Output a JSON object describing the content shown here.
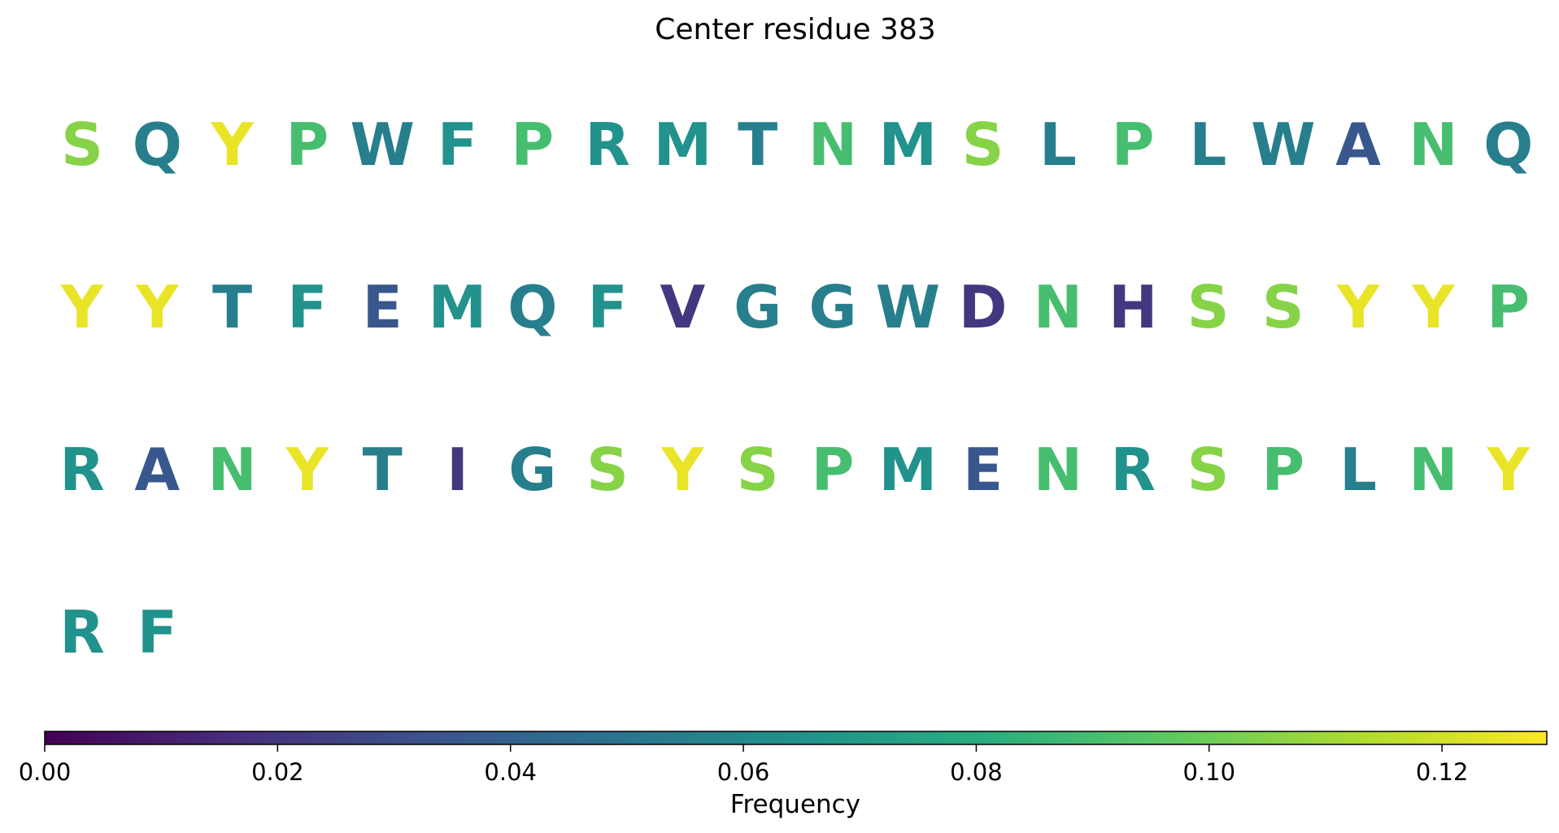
{
  "chart_data": {
    "type": "table",
    "title": "Center residue 383",
    "residues": [
      {
        "letter": "S",
        "value": 0.105
      },
      {
        "letter": "Q",
        "value": 0.055
      },
      {
        "letter": "Y",
        "value": 0.125
      },
      {
        "letter": "P",
        "value": 0.09
      },
      {
        "letter": "W",
        "value": 0.055
      },
      {
        "letter": "F",
        "value": 0.065
      },
      {
        "letter": "P",
        "value": 0.09
      },
      {
        "letter": "R",
        "value": 0.065
      },
      {
        "letter": "M",
        "value": 0.065
      },
      {
        "letter": "T",
        "value": 0.055
      },
      {
        "letter": "N",
        "value": 0.09
      },
      {
        "letter": "M",
        "value": 0.065
      },
      {
        "letter": "S",
        "value": 0.105
      },
      {
        "letter": "L",
        "value": 0.055
      },
      {
        "letter": "P",
        "value": 0.09
      },
      {
        "letter": "L",
        "value": 0.055
      },
      {
        "letter": "W",
        "value": 0.055
      },
      {
        "letter": "A",
        "value": 0.035
      },
      {
        "letter": "N",
        "value": 0.09
      },
      {
        "letter": "Q",
        "value": 0.055
      },
      {
        "letter": "Y",
        "value": 0.125
      },
      {
        "letter": "Y",
        "value": 0.125
      },
      {
        "letter": "T",
        "value": 0.055
      },
      {
        "letter": "F",
        "value": 0.065
      },
      {
        "letter": "E",
        "value": 0.035
      },
      {
        "letter": "M",
        "value": 0.065
      },
      {
        "letter": "Q",
        "value": 0.055
      },
      {
        "letter": "F",
        "value": 0.065
      },
      {
        "letter": "V",
        "value": 0.02
      },
      {
        "letter": "G",
        "value": 0.055
      },
      {
        "letter": "G",
        "value": 0.055
      },
      {
        "letter": "W",
        "value": 0.055
      },
      {
        "letter": "D",
        "value": 0.02
      },
      {
        "letter": "N",
        "value": 0.09
      },
      {
        "letter": "H",
        "value": 0.02
      },
      {
        "letter": "S",
        "value": 0.105
      },
      {
        "letter": "S",
        "value": 0.105
      },
      {
        "letter": "Y",
        "value": 0.125
      },
      {
        "letter": "Y",
        "value": 0.125
      },
      {
        "letter": "P",
        "value": 0.09
      },
      {
        "letter": "R",
        "value": 0.065
      },
      {
        "letter": "A",
        "value": 0.035
      },
      {
        "letter": "N",
        "value": 0.09
      },
      {
        "letter": "Y",
        "value": 0.125
      },
      {
        "letter": "T",
        "value": 0.055
      },
      {
        "letter": "I",
        "value": 0.02
      },
      {
        "letter": "G",
        "value": 0.055
      },
      {
        "letter": "S",
        "value": 0.105
      },
      {
        "letter": "Y",
        "value": 0.125
      },
      {
        "letter": "S",
        "value": 0.105
      },
      {
        "letter": "P",
        "value": 0.09
      },
      {
        "letter": "M",
        "value": 0.065
      },
      {
        "letter": "E",
        "value": 0.035
      },
      {
        "letter": "N",
        "value": 0.09
      },
      {
        "letter": "R",
        "value": 0.065
      },
      {
        "letter": "S",
        "value": 0.105
      },
      {
        "letter": "P",
        "value": 0.09
      },
      {
        "letter": "L",
        "value": 0.055
      },
      {
        "letter": "N",
        "value": 0.09
      },
      {
        "letter": "Y",
        "value": 0.125
      },
      {
        "letter": "R",
        "value": 0.065
      },
      {
        "letter": "F",
        "value": 0.065
      }
    ],
    "colorbar": {
      "label": "Frequency",
      "range": [
        0,
        0.129
      ],
      "ticks": [
        0.0,
        0.02,
        0.04,
        0.06,
        0.08,
        0.1,
        0.12
      ],
      "tick_labels": [
        "0.00",
        "0.02",
        "0.04",
        "0.06",
        "0.08",
        "0.10",
        "0.12"
      ],
      "colormap": "viridis",
      "orientation": "horizontal",
      "placement": "bottom"
    }
  }
}
